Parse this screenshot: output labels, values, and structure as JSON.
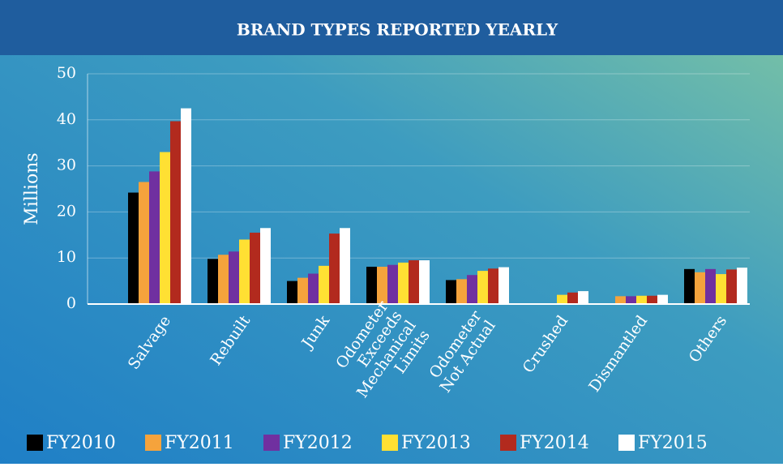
{
  "chart_data": {
    "type": "bar",
    "title": "BRAND TYPES   REPORTED YEARLY",
    "y_label": "Millions",
    "categories": [
      "Salvage",
      "Rebuilt",
      "Junk",
      "Odometer\nExceeds\nMechanical\nLimits",
      "Odometer\nNot Actual",
      "Crushed",
      "Dismantled",
      "Others"
    ],
    "series": [
      {
        "name": "FY2010",
        "color": "#000000",
        "values": [
          24.2,
          9.8,
          5,
          8.1,
          5.2,
          null,
          null,
          7.6
        ]
      },
      {
        "name": "FY2011",
        "color": "#f5a33c",
        "values": [
          26.5,
          10.7,
          5.7,
          8.1,
          5.4,
          null,
          1.7,
          6.9
        ]
      },
      {
        "name": "FY2012",
        "color": "#7030a0",
        "values": [
          28.8,
          11.4,
          6.6,
          8.5,
          6.3,
          null,
          1.7,
          7.6
        ]
      },
      {
        "name": "FY2013",
        "color": "#ffe033",
        "values": [
          33,
          14,
          8.3,
          9,
          7.2,
          2,
          1.8,
          6.5
        ]
      },
      {
        "name": "FY2014",
        "color": "#b22a1e",
        "values": [
          39.7,
          15.5,
          15.3,
          9.5,
          7.7,
          2.5,
          1.8,
          7.5
        ]
      },
      {
        "name": "FY2015",
        "color": "#ffffff",
        "values": [
          42.5,
          16.5,
          16.5,
          9.5,
          8,
          2.8,
          2,
          7.9
        ]
      }
    ],
    "ylim": [
      0,
      50
    ],
    "yticks": [
      0,
      10,
      20,
      30,
      40,
      50
    ],
    "grid": true
  }
}
